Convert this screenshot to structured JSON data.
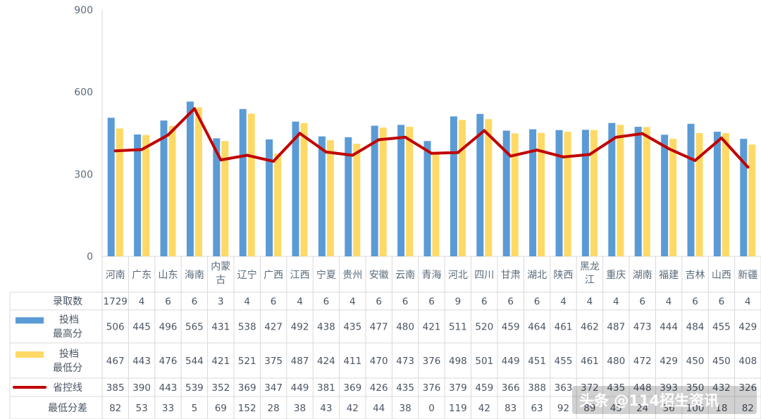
{
  "chart_data": {
    "type": "bar",
    "categories": [
      [
        "河南"
      ],
      [
        "广东"
      ],
      [
        "山东"
      ],
      [
        "海南"
      ],
      [
        "内蒙",
        "古"
      ],
      [
        "辽宁"
      ],
      [
        "广西"
      ],
      [
        "江西"
      ],
      [
        "宁夏"
      ],
      [
        "贵州"
      ],
      [
        "安徽"
      ],
      [
        "云南"
      ],
      [
        "青海"
      ],
      [
        "河北"
      ],
      [
        "四川"
      ],
      [
        "甘肃"
      ],
      [
        "湖北"
      ],
      [
        "陕西"
      ],
      [
        "黑龙",
        "江"
      ],
      [
        "重庆"
      ],
      [
        "湖南"
      ],
      [
        "福建"
      ],
      [
        "吉林"
      ],
      [
        "山西"
      ],
      [
        "新疆"
      ]
    ],
    "yticks": [
      "0",
      "300",
      "600",
      "900"
    ],
    "ylim": [
      0,
      900
    ],
    "grid": false,
    "series": [
      {
        "name": "投档最高分",
        "label_lines": [
          "投档",
          "最高分"
        ],
        "type": "bar",
        "color": "#5b9bd5",
        "values": [
          506,
          445,
          496,
          565,
          431,
          538,
          427,
          492,
          438,
          435,
          477,
          480,
          421,
          511,
          520,
          459,
          464,
          461,
          462,
          487,
          473,
          444,
          484,
          455,
          429
        ]
      },
      {
        "name": "投档最低分",
        "label_lines": [
          "投档",
          "最低分"
        ],
        "type": "bar",
        "color": "#ffd966",
        "values": [
          467,
          443,
          476,
          544,
          421,
          521,
          375,
          487,
          424,
          411,
          470,
          473,
          376,
          498,
          501,
          449,
          451,
          455,
          461,
          480,
          472,
          429,
          450,
          450,
          408
        ]
      },
      {
        "name": "省控线",
        "label_lines": [
          "省控线"
        ],
        "type": "line",
        "color": "#c00000",
        "values": [
          385,
          390,
          443,
          539,
          352,
          369,
          347,
          449,
          381,
          369,
          426,
          435,
          376,
          379,
          459,
          366,
          388,
          363,
          372,
          435,
          448,
          393,
          350,
          432,
          326
        ]
      }
    ],
    "table": {
      "extra_rows": [
        {
          "label": "录取数",
          "values": [
            "1729",
            "4",
            "6",
            "6",
            "3",
            "4",
            "6",
            "4",
            "6",
            "4",
            "6",
            "6",
            "6",
            "9",
            "6",
            "6",
            "6",
            "4",
            "4",
            "4",
            "6",
            "4",
            "6",
            "6",
            "4"
          ]
        },
        {
          "label": "最低分差",
          "values": [
            "82",
            "53",
            "33",
            "5",
            "69",
            "152",
            "28",
            "38",
            "43",
            "42",
            "44",
            "38",
            "0",
            "119",
            "42",
            "83",
            "63",
            "92",
            "89",
            "45",
            "24",
            "36",
            "100",
            "18",
            "82"
          ]
        }
      ]
    }
  },
  "watermark": "头条 @114招生资讯",
  "colors": {
    "axis": "#d9d9d9",
    "text": "#5a6b7b"
  }
}
